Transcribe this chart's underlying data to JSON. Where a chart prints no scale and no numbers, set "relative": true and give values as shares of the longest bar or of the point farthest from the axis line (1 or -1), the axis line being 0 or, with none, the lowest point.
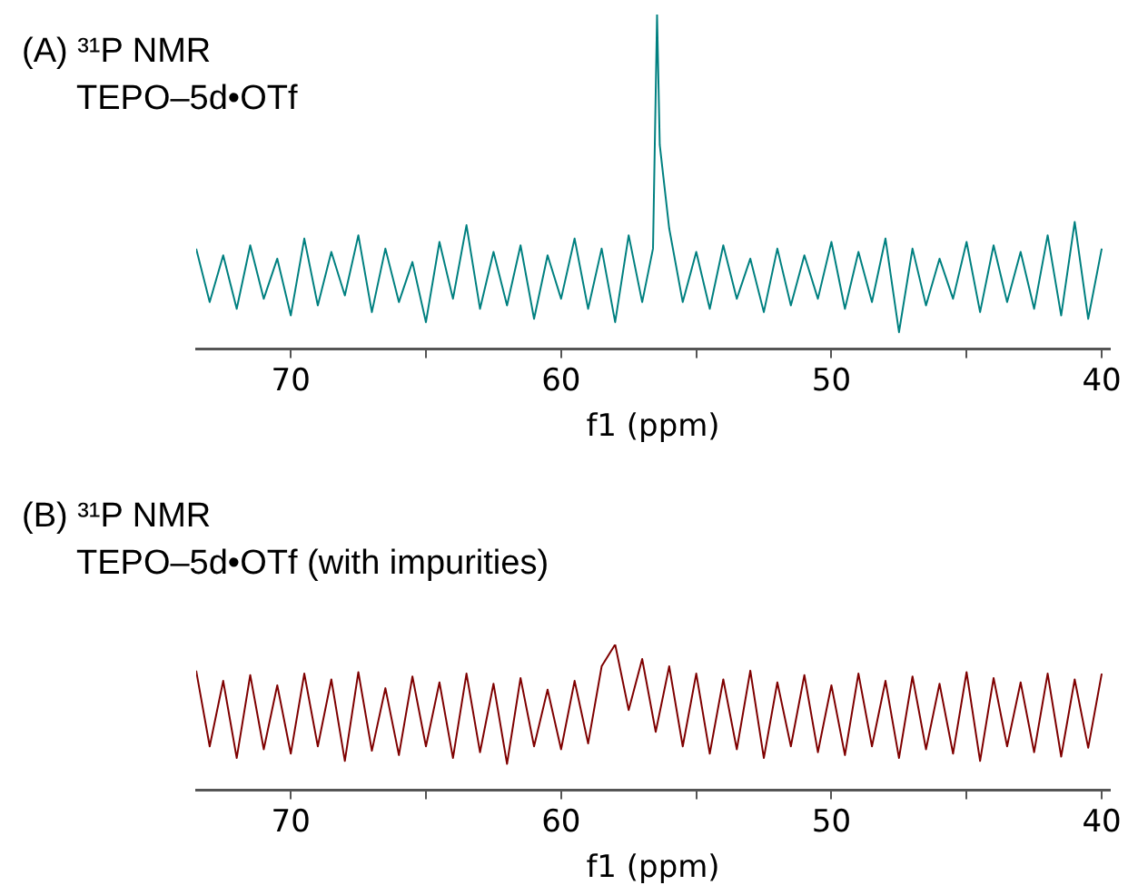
{
  "chart_data": [
    {
      "type": "line",
      "title": "(A) ³¹P NMR",
      "subtitle": "TEPO–5d•OTf",
      "xlabel": "f1 (ppm)",
      "relative": true,
      "xlim": [
        73.5,
        39.7
      ],
      "xticks": [
        70,
        {
          "value": 65,
          "label": null
        },
        60,
        {
          "value": 55,
          "label": null
        },
        50,
        {
          "value": 45,
          "label": null
        },
        40
      ],
      "series": [
        {
          "color": "#008080",
          "x": [
            73.5,
            73,
            72.5,
            72,
            71.5,
            71,
            70.5,
            70,
            69.5,
            69,
            68.5,
            68,
            67.5,
            67,
            66.5,
            66,
            65.5,
            65,
            64.5,
            64,
            63.5,
            63,
            62.5,
            62,
            61.5,
            61,
            60.5,
            60,
            59.5,
            59,
            58.5,
            58,
            57.5,
            57,
            56.6,
            56.45,
            56.35,
            56,
            55.5,
            55,
            54.5,
            54,
            53.5,
            53,
            52.5,
            52,
            51.5,
            51,
            50.5,
            50,
            49.5,
            49,
            48.5,
            48,
            47.5,
            47,
            46.5,
            46,
            45.5,
            45,
            44.5,
            44,
            43.5,
            43,
            42.5,
            42,
            41.5,
            41,
            40.5,
            40
          ],
          "values": [
            0.3,
            0.14,
            0.28,
            0.12,
            0.31,
            0.15,
            0.27,
            0.1,
            0.33,
            0.13,
            0.29,
            0.16,
            0.34,
            0.11,
            0.3,
            0.14,
            0.26,
            0.08,
            0.32,
            0.15,
            0.37,
            0.12,
            0.29,
            0.13,
            0.31,
            0.09,
            0.28,
            0.15,
            0.33,
            0.12,
            0.3,
            0.08,
            0.34,
            0.14,
            0.3,
            1,
            0.61,
            0.36,
            0.14,
            0.29,
            0.12,
            0.31,
            0.15,
            0.27,
            0.11,
            0.3,
            0.13,
            0.28,
            0.15,
            0.32,
            0.12,
            0.29,
            0.14,
            0.33,
            0.05,
            0.3,
            0.13,
            0.27,
            0.15,
            0.32,
            0.11,
            0.31,
            0.14,
            0.29,
            0.12,
            0.34,
            0.1,
            0.38,
            0.09,
            0.3
          ]
        }
      ]
    },
    {
      "type": "line",
      "title": "(B) ³¹P NMR",
      "subtitle": "TEPO–5d•OTf (with impurities)",
      "xlabel": "f1 (ppm)",
      "relative": true,
      "xlim": [
        73.5,
        39.7
      ],
      "xticks": [
        70,
        {
          "value": 65,
          "label": null
        },
        60,
        {
          "value": 55,
          "label": null
        },
        50,
        {
          "value": 45,
          "label": null
        },
        40
      ],
      "series": [
        {
          "color": "#7f0000",
          "x": [
            73.5,
            73,
            72.5,
            72,
            71.5,
            71,
            70.5,
            70,
            69.5,
            69,
            68.5,
            68,
            67.5,
            67,
            66.5,
            66,
            65.5,
            65,
            64.5,
            64,
            63.5,
            63,
            62.5,
            62,
            61.5,
            61,
            60.5,
            60,
            59.5,
            59,
            58.5,
            58,
            57.5,
            57,
            56.5,
            56,
            55.5,
            55,
            54.5,
            54,
            53.5,
            53,
            52.5,
            52,
            51.5,
            51,
            50.5,
            50,
            49.5,
            49,
            48.5,
            48,
            47.5,
            47,
            46.5,
            46,
            45.5,
            45,
            44.5,
            44,
            43.5,
            43,
            42.5,
            42,
            41.5,
            41,
            40.5,
            40
          ],
          "values": [
            0.82,
            0.3,
            0.75,
            0.22,
            0.79,
            0.28,
            0.72,
            0.25,
            0.8,
            0.3,
            0.76,
            0.2,
            0.81,
            0.27,
            0.7,
            0.24,
            0.78,
            0.3,
            0.74,
            0.22,
            0.8,
            0.26,
            0.73,
            0.18,
            0.77,
            0.3,
            0.69,
            0.28,
            0.75,
            0.32,
            0.85,
            1,
            0.55,
            0.9,
            0.4,
            0.85,
            0.3,
            0.8,
            0.25,
            0.76,
            0.28,
            0.82,
            0.22,
            0.74,
            0.3,
            0.79,
            0.26,
            0.72,
            0.24,
            0.8,
            0.3,
            0.75,
            0.22,
            0.78,
            0.28,
            0.73,
            0.25,
            0.81,
            0.2,
            0.77,
            0.3,
            0.74,
            0.26,
            0.8,
            0.23,
            0.76,
            0.29,
            0.8
          ]
        }
      ]
    }
  ]
}
